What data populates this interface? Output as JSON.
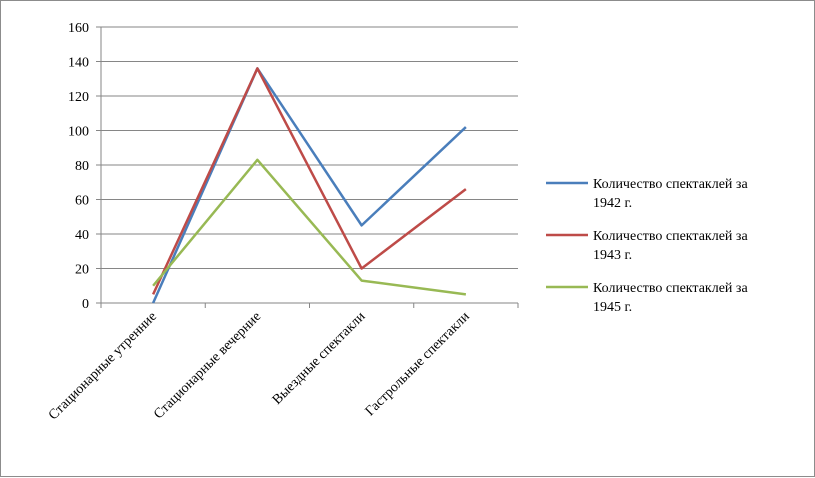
{
  "chart_data": {
    "type": "line",
    "categories": [
      "Стационарные утренние",
      "Стационарные вечерние",
      "Выездные спектакли",
      "Гастрольные спектакли"
    ],
    "series": [
      {
        "name": "Количество спектаклей за 1942 г.",
        "values": [
          0,
          136,
          45,
          102
        ],
        "color": "#4a7ebb"
      },
      {
        "name": "Количество спектаклей за 1943 г.",
        "values": [
          5,
          136,
          20,
          66
        ],
        "color": "#be4b48"
      },
      {
        "name": "Количество спектаклей за 1945 г.",
        "values": [
          10,
          83,
          13,
          5
        ],
        "color": "#98b954"
      }
    ],
    "yticks": [
      "0",
      "20",
      "40",
      "60",
      "80",
      "100",
      "120",
      "140",
      "160"
    ],
    "ylim": [
      0,
      160
    ],
    "grid": true,
    "legend": "right"
  }
}
